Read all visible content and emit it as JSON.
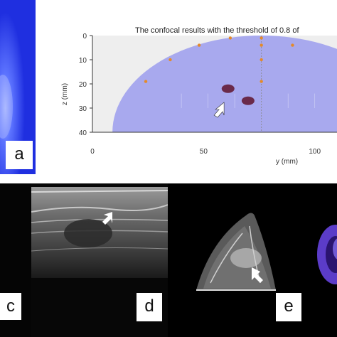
{
  "panel_labels": {
    "a": "a",
    "c": "c",
    "d": "d",
    "e": "e"
  },
  "chart_data": {
    "type": "scatter",
    "title": "The confocal results with the threshold of 0.8 of",
    "xlabel": "y (mm)",
    "ylabel": "z (mm)",
    "xlim": [
      0,
      110
    ],
    "ylim": [
      40,
      0
    ],
    "xticks": [
      "0",
      "50",
      "100"
    ],
    "yticks": [
      "0",
      "10",
      "20",
      "30",
      "40"
    ],
    "series": [
      {
        "values": [
          [
            24,
            19
          ],
          [
            35,
            10
          ],
          [
            48,
            4
          ],
          [
            62,
            1
          ],
          [
            76,
            1
          ],
          [
            76,
            4
          ],
          [
            76,
            10
          ],
          [
            76,
            19
          ],
          [
            90,
            4
          ]
        ]
      }
    ],
    "lesions": [
      [
        61,
        22
      ],
      [
        70,
        27
      ]
    ],
    "colors": {
      "dome": "#a8a9ee",
      "points": "#e48a2a",
      "lesion": "#6a2a4a"
    }
  }
}
